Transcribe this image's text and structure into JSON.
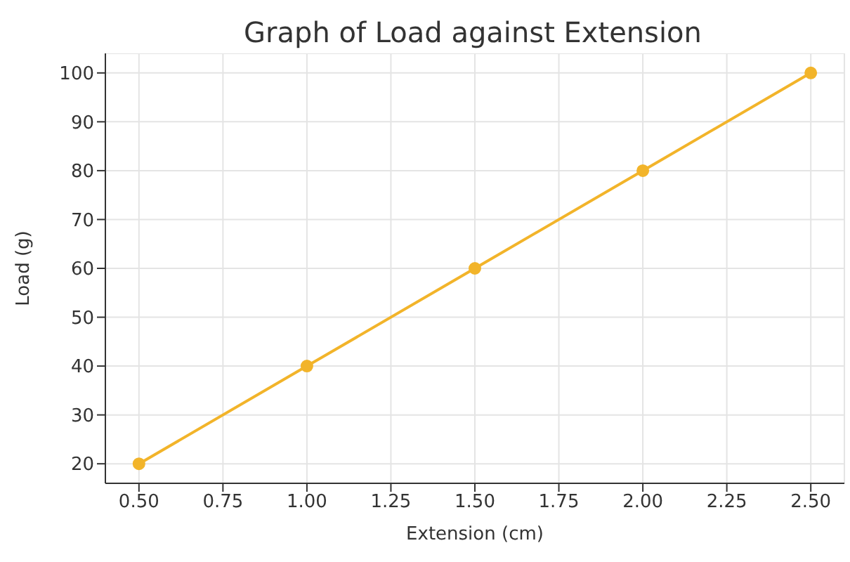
{
  "chart_data": {
    "type": "line",
    "title": "Graph of Load against Extension",
    "xlabel": "Extension (cm)",
    "ylabel": "Load (g)",
    "x": [
      0.5,
      1.0,
      1.5,
      2.0,
      2.5
    ],
    "series": [
      {
        "color": "#f2b42a",
        "values": [
          20,
          40,
          60,
          80,
          100
        ]
      }
    ],
    "xlim": [
      0.4,
      2.6
    ],
    "ylim": [
      16,
      104
    ],
    "xticks": [
      {
        "value": 0.5,
        "label": "0.50"
      },
      {
        "value": 0.75,
        "label": "0.75"
      },
      {
        "value": 1.0,
        "label": "1.00"
      },
      {
        "value": 1.25,
        "label": "1.25"
      },
      {
        "value": 1.5,
        "label": "1.50"
      },
      {
        "value": 1.75,
        "label": "1.75"
      },
      {
        "value": 2.0,
        "label": "2.00"
      },
      {
        "value": 2.25,
        "label": "2.25"
      },
      {
        "value": 2.5,
        "label": "2.50"
      }
    ],
    "yticks": [
      20,
      30,
      40,
      50,
      60,
      70,
      80,
      90,
      100
    ],
    "grid": true,
    "marker": "circle",
    "line_style": "solid"
  }
}
